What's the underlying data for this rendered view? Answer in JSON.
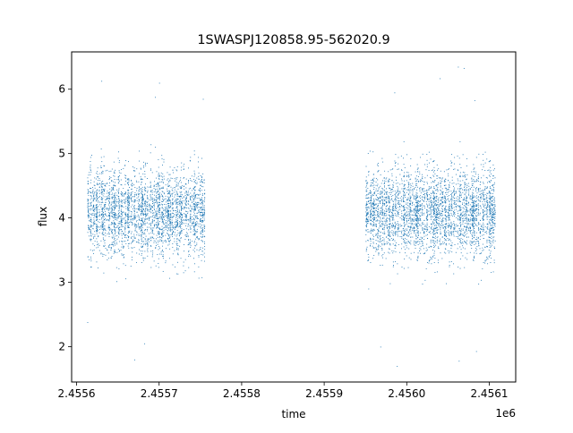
{
  "chart_data": {
    "type": "scatter",
    "title": "1SWASPJ120858.95-562020.9",
    "xlabel": "time",
    "ylabel": "flux",
    "x_offset_label": "1e6",
    "xlim": [
      2455594,
      2456132
    ],
    "ylim": [
      1.45,
      6.58
    ],
    "x_ticks": [
      2455600,
      2455700,
      2455800,
      2455900,
      2456000,
      2456100
    ],
    "x_tick_labels": [
      "2.4556",
      "2.4557",
      "2.4558",
      "2.4559",
      "2.4560",
      "2.4561"
    ],
    "y_ticks": [
      2,
      3,
      4,
      5,
      6
    ],
    "y_tick_labels": [
      "2",
      "3",
      "4",
      "5",
      "6"
    ],
    "grid": false,
    "legend": "none",
    "marker_color": "#1f77b4",
    "observing_segments": [
      {
        "x_start": 2455613,
        "x_end": 2455755,
        "median_flux": 4.1
      },
      {
        "x_start": 2455950,
        "x_end": 2456107,
        "median_flux": 4.1
      }
    ],
    "outliers": [
      {
        "x": 2455630,
        "y": 6.13
      },
      {
        "x": 2455700,
        "y": 6.1
      },
      {
        "x": 2455695,
        "y": 5.88
      },
      {
        "x": 2455753,
        "y": 5.85
      },
      {
        "x": 2456062,
        "y": 6.35
      },
      {
        "x": 2456069,
        "y": 6.33
      },
      {
        "x": 2456040,
        "y": 6.17
      },
      {
        "x": 2456082,
        "y": 5.83
      },
      {
        "x": 2455985,
        "y": 5.95
      },
      {
        "x": 2455988,
        "y": 1.7
      },
      {
        "x": 2456063,
        "y": 1.78
      },
      {
        "x": 2456084,
        "y": 1.93
      },
      {
        "x": 2455670,
        "y": 1.8
      },
      {
        "x": 2455682,
        "y": 2.05
      },
      {
        "x": 2455613,
        "y": 2.38
      },
      {
        "x": 2455968,
        "y": 2.0
      }
    ]
  }
}
